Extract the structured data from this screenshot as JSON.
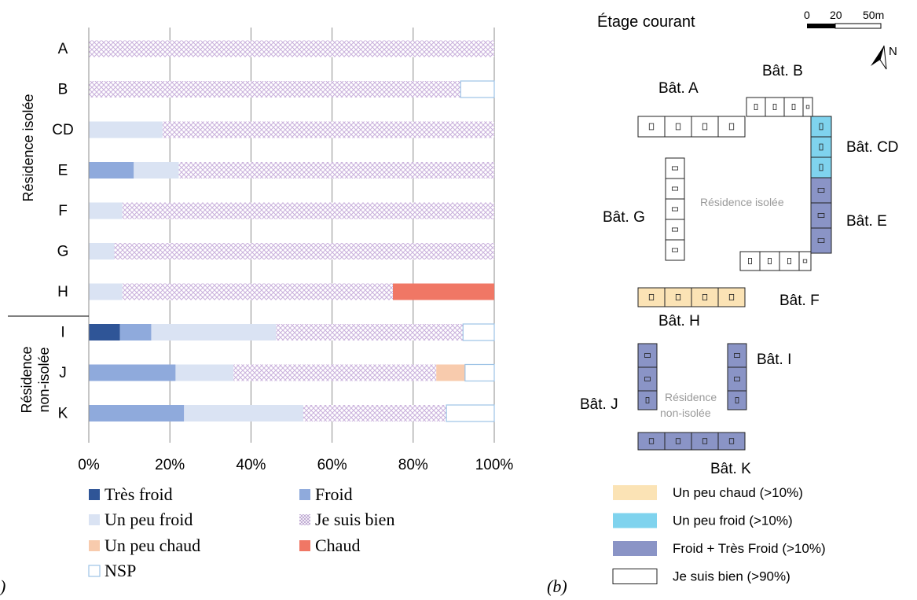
{
  "panel_a_label": ")",
  "panel_b_label": "(b)",
  "chart_data": {
    "type": "bar",
    "orientation": "horizontal",
    "stacked": true,
    "percent_axis": true,
    "xlim": [
      0,
      100
    ],
    "xticks": [
      "0%",
      "20%",
      "40%",
      "60%",
      "80%",
      "100%"
    ],
    "grid": "vertical",
    "categories": [
      "A",
      "B",
      "CD",
      "E",
      "F",
      "G",
      "H",
      "I",
      "J",
      "K"
    ],
    "groups": [
      {
        "label": "Résidence isolée",
        "categories": [
          "A",
          "B",
          "CD",
          "E",
          "F",
          "G",
          "H"
        ]
      },
      {
        "label_lines": [
          "Résidence",
          "non-isolée"
        ],
        "categories": [
          "I",
          "J",
          "K"
        ]
      }
    ],
    "series": [
      {
        "name": "Très froid",
        "color": "#2f5597",
        "pattern": "solid",
        "values": [
          0,
          0,
          0,
          0,
          0,
          0,
          0,
          7.7,
          0,
          0
        ]
      },
      {
        "name": "Froid",
        "color": "#8faadc",
        "pattern": "solid",
        "values": [
          0,
          0,
          0,
          11.1,
          0,
          0,
          0,
          7.7,
          21.4,
          23.5
        ]
      },
      {
        "name": "Un peu froid",
        "color": "#dae3f3",
        "pattern": "solid",
        "values": [
          0,
          0,
          18.2,
          11.1,
          8.3,
          6.3,
          8.3,
          30.8,
          14.3,
          29.4
        ]
      },
      {
        "name": "Je suis bien",
        "color": "#c9b8e0",
        "pattern": "crosshatch",
        "values": [
          100,
          91.7,
          81.8,
          77.8,
          91.7,
          93.7,
          66.7,
          46.1,
          50.0,
          35.3
        ]
      },
      {
        "name": "Un peu chaud",
        "color": "#f8cbad",
        "pattern": "solid",
        "values": [
          0,
          0,
          0,
          0,
          0,
          0,
          0,
          0,
          7.1,
          0
        ]
      },
      {
        "name": "Chaud",
        "color": "#f07765",
        "pattern": "solid",
        "values": [
          0,
          0,
          0,
          0,
          0,
          0,
          25.0,
          0,
          0,
          0
        ]
      },
      {
        "name": "NSP",
        "color": "#9dc3e6",
        "pattern": "outline",
        "values": [
          0,
          8.3,
          0,
          0,
          0,
          0,
          0,
          7.7,
          7.2,
          11.8
        ]
      }
    ],
    "legend": "bottom"
  },
  "map": {
    "title": "Étage courant",
    "scale_labels": [
      "0",
      "20",
      "50m"
    ],
    "north_label": "N",
    "zone_labels": {
      "isolated": "Résidence isolée",
      "non_isolated_lines": [
        "Résidence",
        "non-isolée"
      ]
    },
    "buildings": [
      {
        "name": "Bât. A",
        "category": "Je suis bien (>90%)"
      },
      {
        "name": "Bât. B",
        "category": "Je suis bien (>90%)"
      },
      {
        "name": "Bât. CD",
        "category": "Un peu froid (>10%)"
      },
      {
        "name": "Bât. E",
        "category": "Froid + Très Froid (>10%)"
      },
      {
        "name": "Bât. F",
        "category": "Je suis bien (>90%)"
      },
      {
        "name": "Bât. G",
        "category": "Je suis bien (>90%)"
      },
      {
        "name": "Bât. H",
        "category": "Un peu chaud (>10%)"
      },
      {
        "name": "Bât. I",
        "category": "Froid + Très Froid (>10%)"
      },
      {
        "name": "Bât. J",
        "category": "Froid + Très Froid (>10%)"
      },
      {
        "name": "Bât. K",
        "category": "Froid + Très Froid (>10%)"
      }
    ],
    "legend": [
      {
        "label": "Un peu chaud (>10%)",
        "color": "#fbe3b5"
      },
      {
        "label": "Un peu froid (>10%)",
        "color": "#7fd3ee"
      },
      {
        "label": "Froid + Très Froid (>10%)",
        "color": "#8a94c6"
      },
      {
        "label": "Je suis bien (>90%)",
        "color": "#ffffff"
      }
    ]
  }
}
